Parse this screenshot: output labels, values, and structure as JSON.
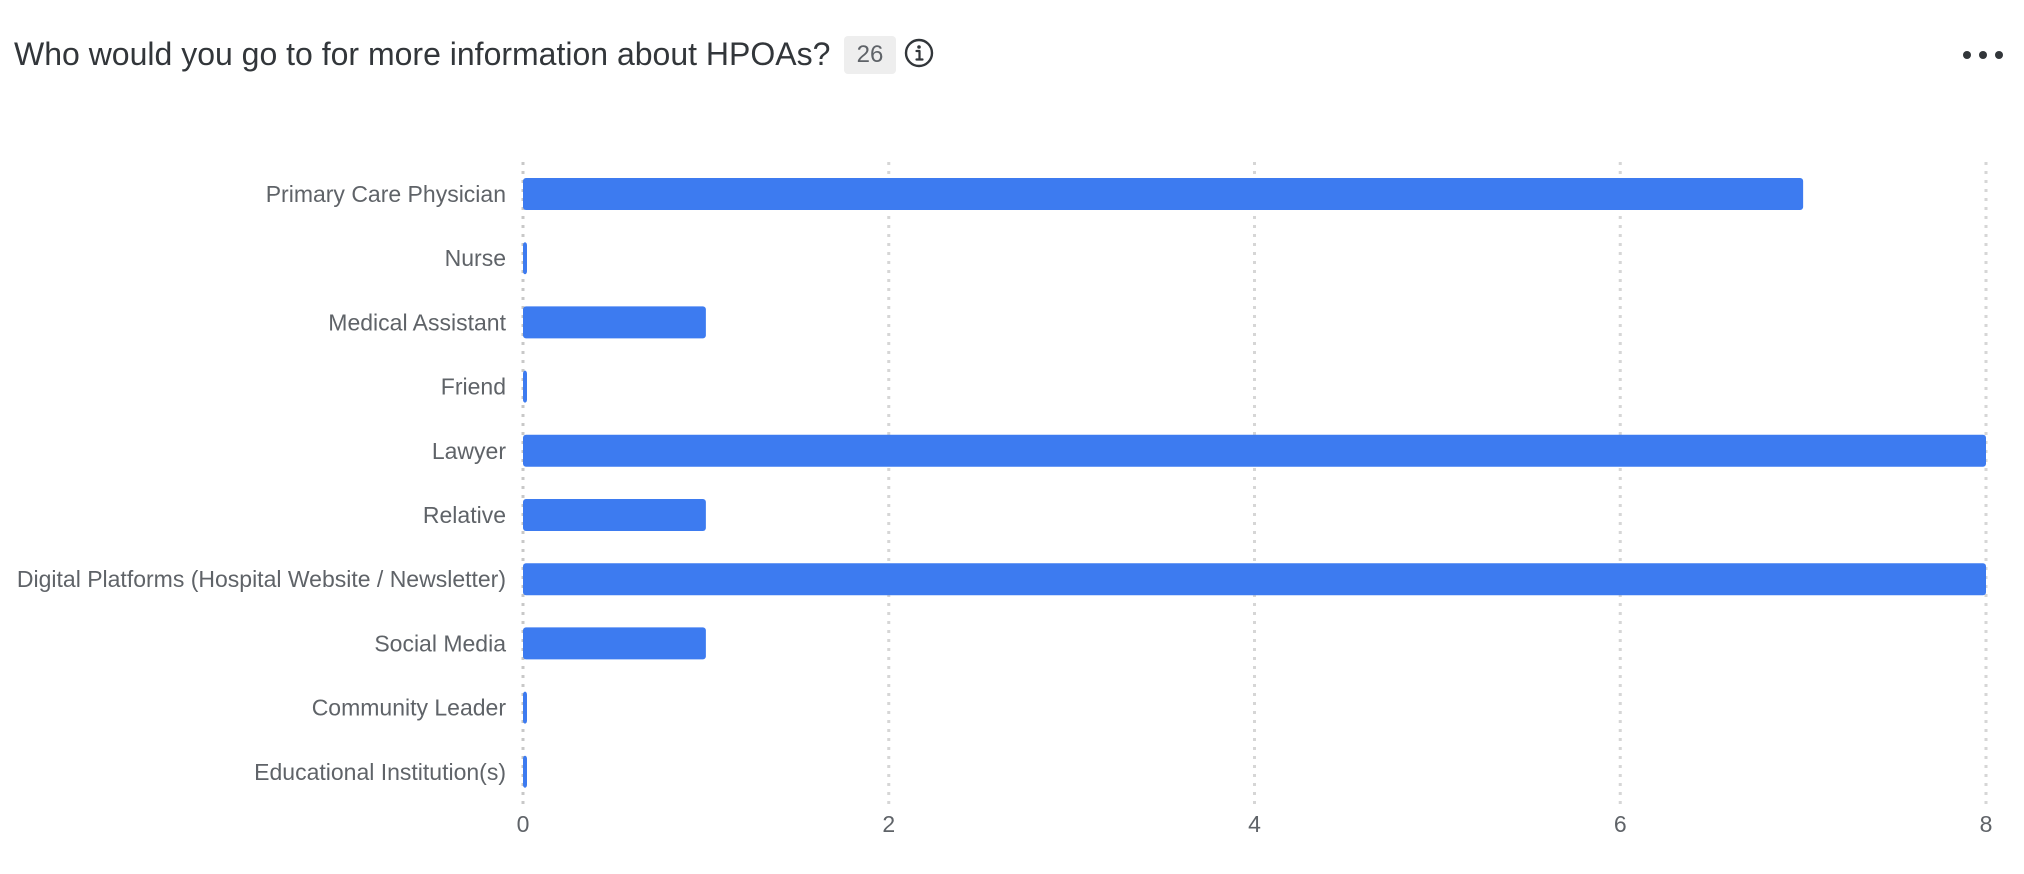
{
  "header": {
    "title": "Who would you go to for more information about HPOAs?",
    "response_count": "26",
    "info_icon": "info-circle-icon",
    "more_icon": "more-horizontal-icon"
  },
  "colors": {
    "bar": "#3d7bf0",
    "grid": "#d6d6d6",
    "axis": "#c8c8c8"
  },
  "chart_data": {
    "type": "bar",
    "orientation": "horizontal",
    "categories": [
      "Primary Care Physician",
      "Nurse",
      "Medical Assistant",
      "Friend",
      "Lawyer",
      "Relative",
      "Digital Platforms (Hospital Website / Newsletter)",
      "Social Media",
      "Community Leader",
      "Educational Institution(s)"
    ],
    "values": [
      7,
      0,
      1,
      0,
      8,
      1,
      8,
      1,
      0,
      0
    ],
    "xlim": [
      0,
      8
    ],
    "xticks": [
      "0",
      "2",
      "4",
      "6",
      "8"
    ],
    "grid": true,
    "legend": "none"
  }
}
